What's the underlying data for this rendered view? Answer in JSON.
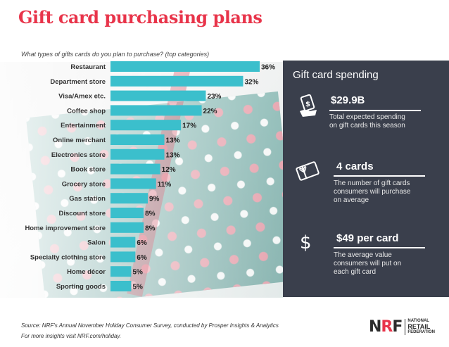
{
  "title": "Gift card purchasing plans",
  "subtitle": "What types of gifts cards do you plan to purchase? (top categories)",
  "chart_data": {
    "type": "bar",
    "orientation": "horizontal",
    "categories": [
      "Restaurant",
      "Department store",
      "Visa/Amex etc.",
      "Coffee shop",
      "Entertainment",
      "Online merchant",
      "Electronics store",
      "Book store",
      "Grocery store",
      "Gas station",
      "Discount store",
      "Home improvement store",
      "Salon",
      "Specialty clothing store",
      "Home décor",
      "Sporting goods"
    ],
    "values": [
      36,
      32,
      23,
      22,
      17,
      13,
      13,
      12,
      11,
      9,
      8,
      8,
      6,
      6,
      5,
      5
    ],
    "value_labels": [
      "36%",
      "32%",
      "23%",
      "22%",
      "17%",
      "13%",
      "13%",
      "12%",
      "11%",
      "9%",
      "8%",
      "8%",
      "6%",
      "6%",
      "5%",
      "5%"
    ],
    "unit": "%",
    "xlim": [
      0,
      36
    ],
    "bar_color": "#3bbfcc",
    "grid": false
  },
  "panel": {
    "title": "Gift card spending",
    "stats": [
      {
        "value": "$29.9B",
        "desc_line1": "Total expected spending",
        "desc_line2": "on gift cards this season",
        "desc_line3": "",
        "icon": "money-hand-icon"
      },
      {
        "value": "4 cards",
        "desc_line1": "The number of gift cards",
        "desc_line2": "consumers will purchase",
        "desc_line3": "on average",
        "icon": "gift-card-icon"
      },
      {
        "value": "$49 per card",
        "desc_line1": "The average value",
        "desc_line2": "consumers will put on",
        "desc_line3": "each gift card",
        "icon": "dollar-sign-icon"
      }
    ]
  },
  "source": {
    "line1": "Source: NRF's Annual November Holiday Consumer Survey, conducted by Prosper Insights & Analytics",
    "line2": "For more insights visit NRF.com/holiday."
  },
  "logo": {
    "letters": "NRF",
    "line1": "NATIONAL",
    "line2": "RETAIL",
    "line3": "FEDERATION"
  },
  "colors": {
    "title": "#e8344a",
    "panel_bg": "#3a3f4c",
    "bar": "#3bbfcc"
  }
}
